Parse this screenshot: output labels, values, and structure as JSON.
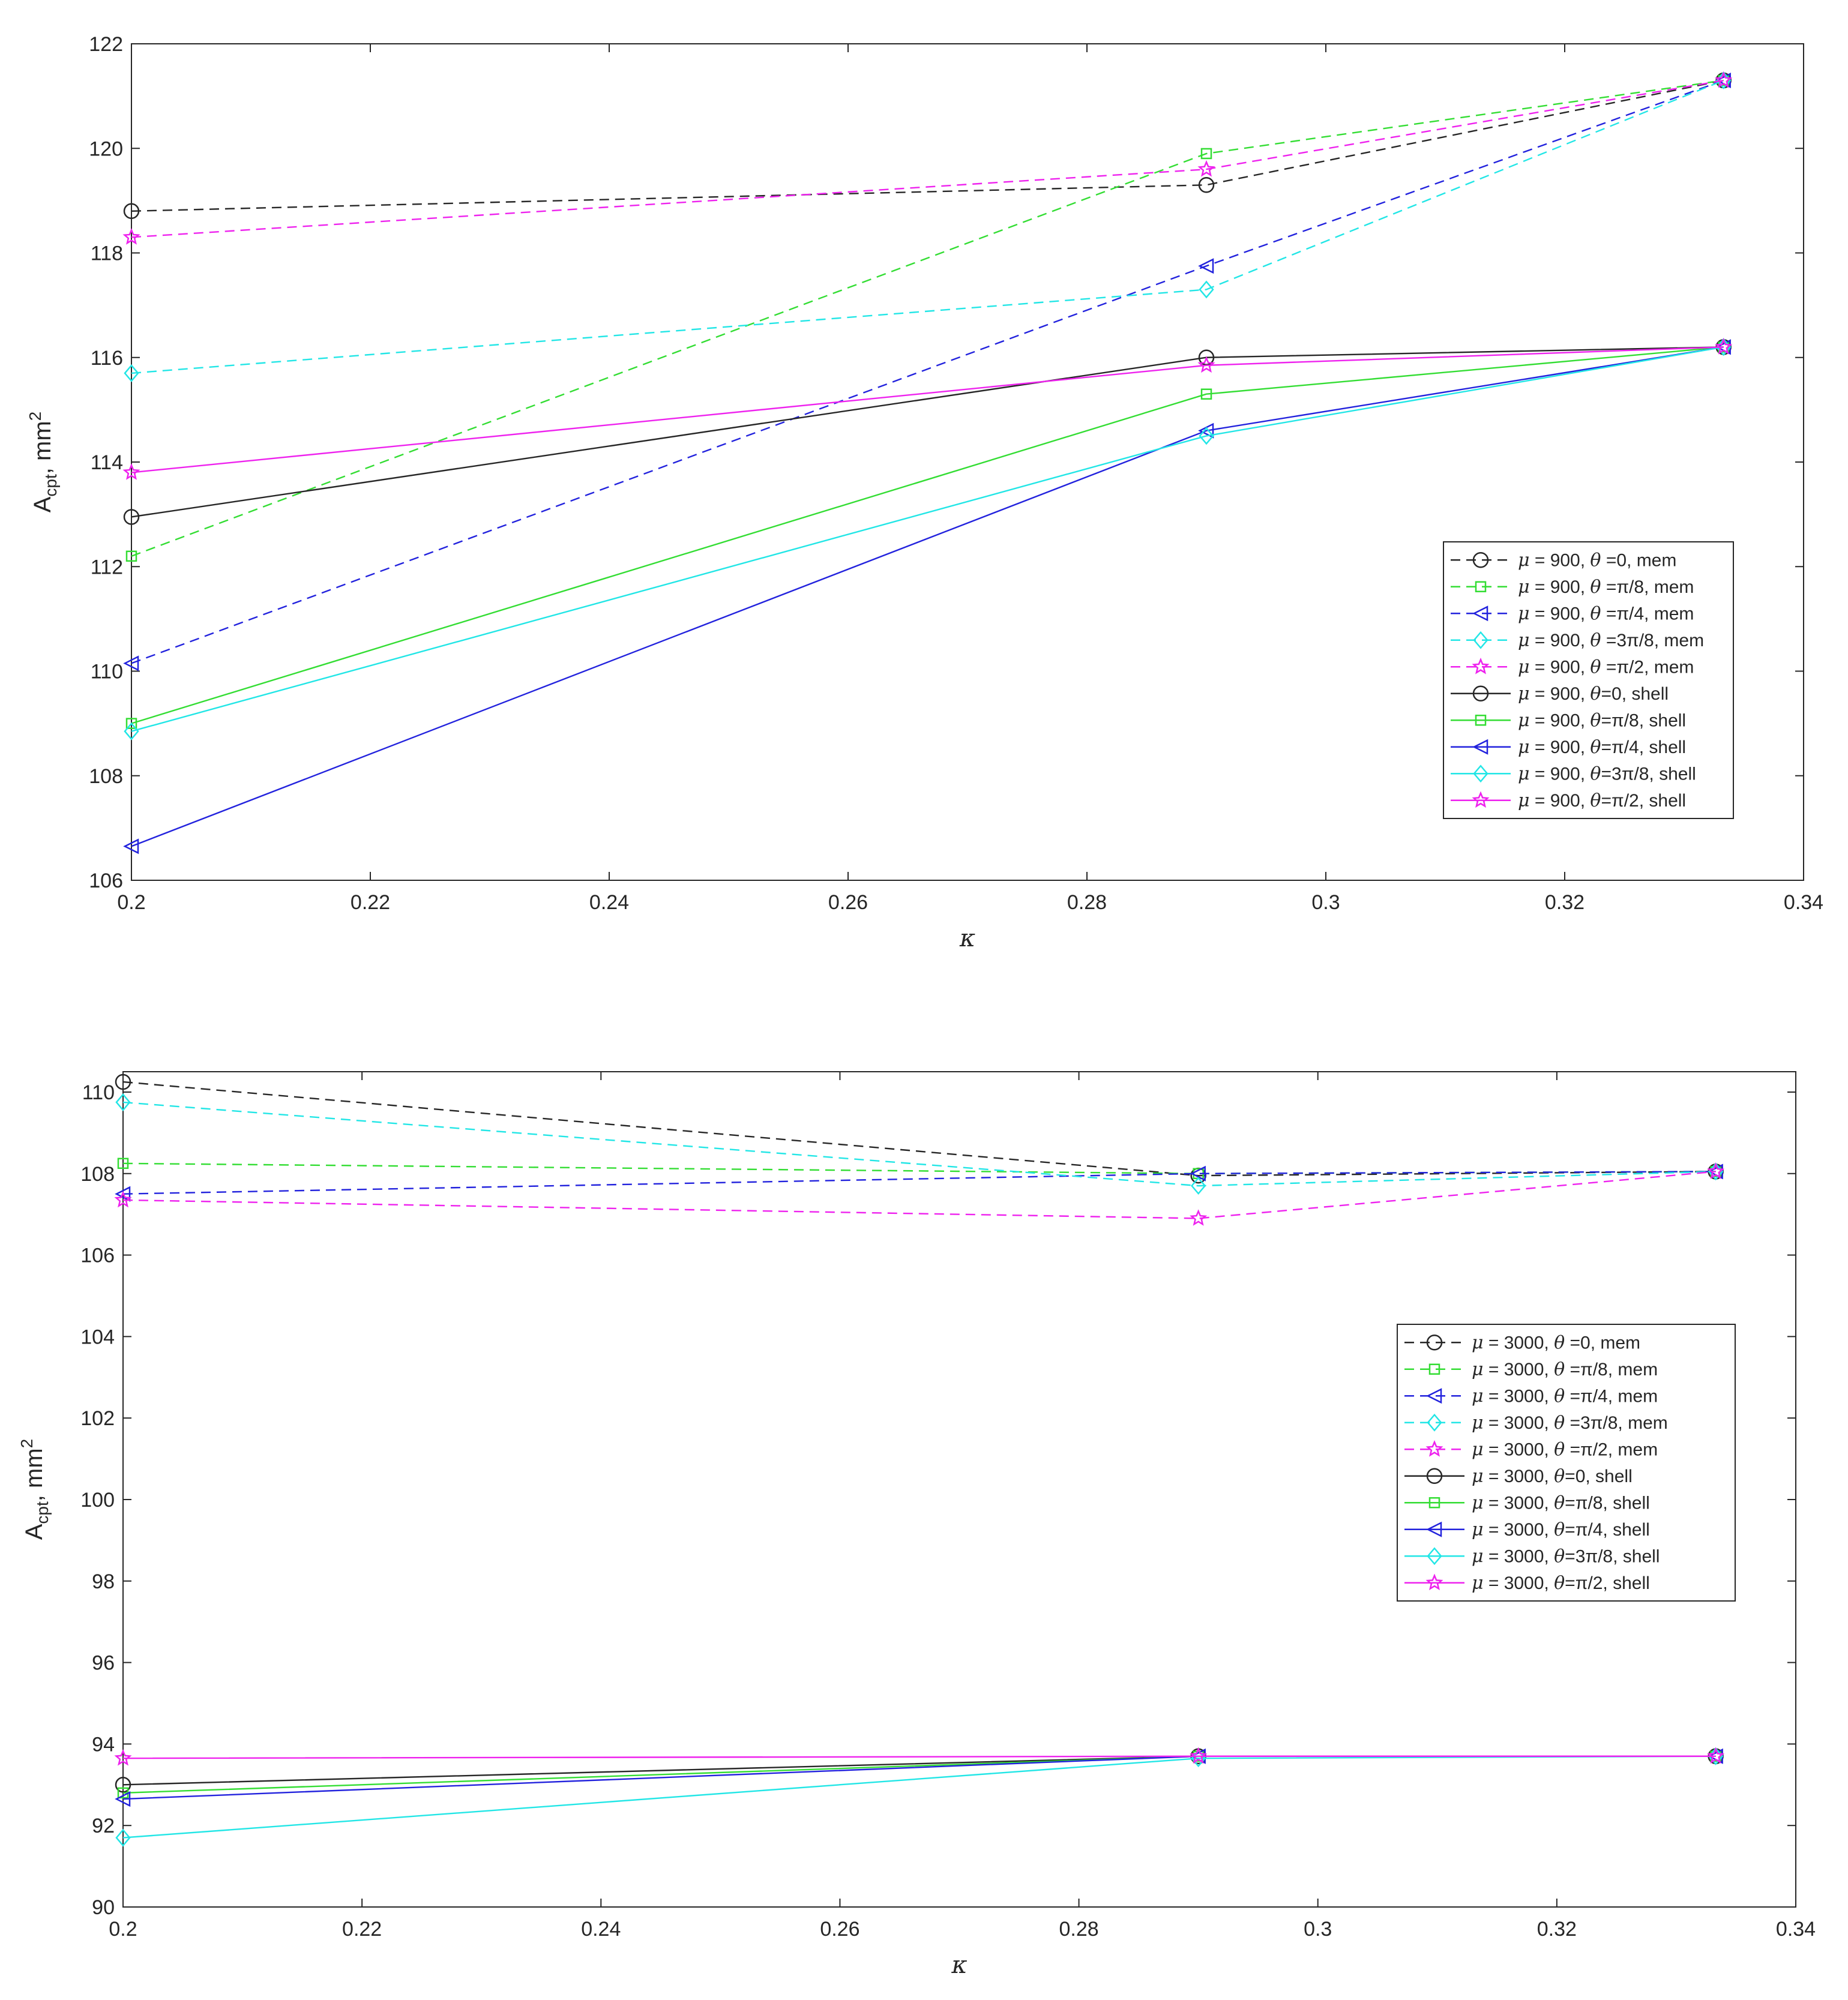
{
  "styles": {
    "colors": {
      "black": "#262626",
      "green": "#33dd33",
      "blue": "#2222dd",
      "cyan": "#22e6e6",
      "magenta": "#ee22ee"
    }
  },
  "chart_data": [
    {
      "type": "line",
      "xlabel": "κ",
      "ylabel": "A_cpt, mm²",
      "ylabel_parts": {
        "main": "A",
        "sub": "cpt",
        "unit": ", mm",
        "sup": "2"
      },
      "xlim": [
        0.2,
        0.34
      ],
      "ylim": [
        106,
        122
      ],
      "xticks": [
        0.2,
        0.22,
        0.24,
        0.26,
        0.28,
        0.3,
        0.32,
        0.34
      ],
      "xtick_labels": [
        "0.2",
        "0.22",
        "0.24",
        "0.26",
        "0.28",
        "0.3",
        "0.32",
        "0.34"
      ],
      "yticks": [
        106,
        108,
        110,
        112,
        114,
        116,
        118,
        120,
        122
      ],
      "ytick_labels": [
        "106",
        "108",
        "110",
        "112",
        "114",
        "116",
        "118",
        "120",
        "122"
      ],
      "legend_position": "center-right",
      "x": [
        0.2,
        0.29,
        0.3333
      ],
      "series": [
        {
          "name": "μ = 900, θ =0, mem",
          "label_mu": "μ",
          "label_rest_1": " = 900, ",
          "label_theta": "θ",
          "label_rest_2": " =0, mem",
          "color": "black",
          "dash": true,
          "marker": "circle",
          "values": [
            118.8,
            119.3,
            121.3
          ]
        },
        {
          "name": "μ = 900, θ =π/8, mem",
          "label_mu": "μ",
          "label_rest_1": " = 900, ",
          "label_theta": "θ",
          "label_rest_2": " =π/8, mem",
          "color": "green",
          "dash": true,
          "marker": "square",
          "values": [
            112.2,
            119.9,
            121.3
          ]
        },
        {
          "name": "μ = 900, θ =π/4, mem",
          "label_mu": "μ",
          "label_rest_1": " = 900, ",
          "label_theta": "θ",
          "label_rest_2": " =π/4, mem",
          "color": "blue",
          "dash": true,
          "marker": "triangle-left",
          "values": [
            110.15,
            117.75,
            121.3
          ]
        },
        {
          "name": "μ = 900, θ =3π/8, mem",
          "label_mu": "μ",
          "label_rest_1": " = 900, ",
          "label_theta": "θ",
          "label_rest_2": " =3π/8, mem",
          "color": "cyan",
          "dash": true,
          "marker": "diamond",
          "values": [
            115.7,
            117.3,
            121.3
          ]
        },
        {
          "name": "μ = 900, θ =π/2, mem",
          "label_mu": "μ",
          "label_rest_1": " = 900, ",
          "label_theta": "θ",
          "label_rest_2": " =π/2, mem",
          "color": "magenta",
          "dash": true,
          "marker": "star",
          "values": [
            118.3,
            119.6,
            121.3
          ]
        },
        {
          "name": "μ = 900, θ=0, shell",
          "label_mu": "μ",
          "label_rest_1": " = 900, ",
          "label_theta": "θ",
          "label_rest_2": "=0, shell",
          "color": "black",
          "dash": false,
          "marker": "circle",
          "values": [
            112.95,
            116.0,
            116.2
          ]
        },
        {
          "name": "μ = 900, θ=π/8, shell",
          "label_mu": "μ",
          "label_rest_1": " = 900, ",
          "label_theta": "θ",
          "label_rest_2": "=π/8, shell",
          "color": "green",
          "dash": false,
          "marker": "square",
          "values": [
            109.0,
            115.3,
            116.2
          ]
        },
        {
          "name": "μ = 900, θ=π/4, shell",
          "label_mu": "μ",
          "label_rest_1": " = 900, ",
          "label_theta": "θ",
          "label_rest_2": "=π/4, shell",
          "color": "blue",
          "dash": false,
          "marker": "triangle-left",
          "values": [
            106.65,
            114.6,
            116.2
          ]
        },
        {
          "name": "μ = 900, θ=3π/8, shell",
          "label_mu": "μ",
          "label_rest_1": " = 900, ",
          "label_theta": "θ",
          "label_rest_2": "=3π/8, shell",
          "color": "cyan",
          "dash": false,
          "marker": "diamond",
          "values": [
            108.85,
            114.5,
            116.2
          ]
        },
        {
          "name": "μ = 900, θ=π/2, shell",
          "label_mu": "μ",
          "label_rest_1": " = 900, ",
          "label_theta": "θ",
          "label_rest_2": "=π/2, shell",
          "color": "magenta",
          "dash": false,
          "marker": "star",
          "values": [
            113.8,
            115.85,
            116.2
          ]
        }
      ]
    },
    {
      "type": "line",
      "xlabel": "κ",
      "ylabel": "A_cpt, mm²",
      "ylabel_parts": {
        "main": "A",
        "sub": "cpt",
        "unit": ", mm",
        "sup": "2"
      },
      "xlim": [
        0.2,
        0.34
      ],
      "ylim": [
        90,
        110.5
      ],
      "xticks": [
        0.2,
        0.22,
        0.24,
        0.26,
        0.28,
        0.3,
        0.32,
        0.34
      ],
      "xtick_labels": [
        "0.2",
        "0.22",
        "0.24",
        "0.26",
        "0.28",
        "0.3",
        "0.32",
        "0.34"
      ],
      "yticks": [
        90,
        92,
        94,
        96,
        98,
        100,
        102,
        104,
        106,
        108,
        110
      ],
      "ytick_labels": [
        "90",
        "92",
        "94",
        "96",
        "98",
        "100",
        "102",
        "104",
        "106",
        "108",
        "110"
      ],
      "legend_position": "center-right",
      "x": [
        0.2,
        0.29,
        0.3333
      ],
      "series": [
        {
          "name": "μ = 3000, θ =0, mem",
          "label_mu": "μ",
          "label_rest_1": " = 3000, ",
          "label_theta": "θ",
          "label_rest_2": " =0, mem",
          "color": "black",
          "dash": true,
          "marker": "circle",
          "values": [
            110.25,
            107.95,
            108.05
          ]
        },
        {
          "name": "μ = 3000, θ =π/8, mem",
          "label_mu": "μ",
          "label_rest_1": " = 3000, ",
          "label_theta": "θ",
          "label_rest_2": " =π/8, mem",
          "color": "green",
          "dash": true,
          "marker": "square",
          "values": [
            108.25,
            108.0,
            108.05
          ]
        },
        {
          "name": "μ = 3000, θ =π/4, mem",
          "label_mu": "μ",
          "label_rest_1": " = 3000, ",
          "label_theta": "θ",
          "label_rest_2": " =π/4, mem",
          "color": "blue",
          "dash": true,
          "marker": "triangle-left",
          "values": [
            107.5,
            108.0,
            108.05
          ]
        },
        {
          "name": "μ = 3000, θ =3π/8, mem",
          "label_mu": "μ",
          "label_rest_1": " = 3000, ",
          "label_theta": "θ",
          "label_rest_2": " =3π/8, mem",
          "color": "cyan",
          "dash": true,
          "marker": "diamond",
          "values": [
            109.75,
            107.7,
            108.05
          ]
        },
        {
          "name": "μ = 3000, θ =π/2, mem",
          "label_mu": "μ",
          "label_rest_1": " = 3000, ",
          "label_theta": "θ",
          "label_rest_2": " =π/2, mem",
          "color": "magenta",
          "dash": true,
          "marker": "star",
          "values": [
            107.35,
            106.9,
            108.05
          ]
        },
        {
          "name": "μ = 3000, θ=0, shell",
          "label_mu": "μ",
          "label_rest_1": " = 3000, ",
          "label_theta": "θ",
          "label_rest_2": "=0, shell",
          "color": "black",
          "dash": false,
          "marker": "circle",
          "values": [
            93.0,
            93.7,
            93.7
          ]
        },
        {
          "name": "μ = 3000, θ=π/8, shell",
          "label_mu": "μ",
          "label_rest_1": " = 3000, ",
          "label_theta": "θ",
          "label_rest_2": "=π/8, shell",
          "color": "green",
          "dash": false,
          "marker": "square",
          "values": [
            92.8,
            93.7,
            93.7
          ]
        },
        {
          "name": "μ = 3000, θ=π/4, shell",
          "label_mu": "μ",
          "label_rest_1": " = 3000, ",
          "label_theta": "θ",
          "label_rest_2": "=π/4, shell",
          "color": "blue",
          "dash": false,
          "marker": "triangle-left",
          "values": [
            92.65,
            93.7,
            93.7
          ]
        },
        {
          "name": "μ = 3000, θ=3π/8, shell",
          "label_mu": "μ",
          "label_rest_1": " = 3000, ",
          "label_theta": "θ",
          "label_rest_2": "=3π/8, shell",
          "color": "cyan",
          "dash": false,
          "marker": "diamond",
          "values": [
            91.7,
            93.65,
            93.7
          ]
        },
        {
          "name": "μ = 3000, θ=π/2, shell",
          "label_mu": "μ",
          "label_rest_1": " = 3000, ",
          "label_theta": "θ",
          "label_rest_2": "=π/2, shell",
          "color": "magenta",
          "dash": false,
          "marker": "star",
          "values": [
            93.65,
            93.7,
            93.7
          ]
        }
      ]
    }
  ]
}
